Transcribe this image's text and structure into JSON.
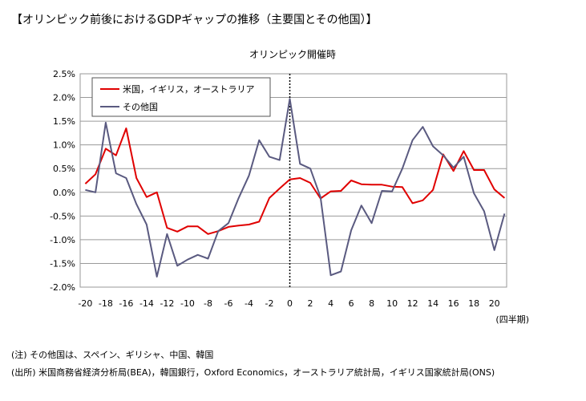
{
  "title": "【オリンピック前後におけるGDPギャップの推移（主要国とその他国）】",
  "notes": [
    "(注) その他国は、スペイン、ギリシャ、中国、韓国",
    "(出所) 米国商務省経済分析局(BEA)，韓国銀行，Oxford Economics，オーストラリア統計局，イギリス国家統計局(ONS)"
  ],
  "chart_data": {
    "type": "line",
    "subtitle": "オリンピック開催時",
    "xlabel": "(四半期)",
    "ylabel": "",
    "x": [
      -20,
      -19,
      -18,
      -17,
      -16,
      -15,
      -14,
      -13,
      -12,
      -11,
      -10,
      -9,
      -8,
      -7,
      -6,
      -5,
      -4,
      -3,
      -2,
      -1,
      0,
      1,
      2,
      3,
      4,
      5,
      6,
      7,
      8,
      9,
      10,
      11,
      12,
      13,
      14,
      15,
      16,
      17,
      18,
      19,
      20,
      21
    ],
    "xticks": [
      -20,
      -18,
      -16,
      -14,
      -12,
      -10,
      -8,
      -6,
      -4,
      -2,
      0,
      2,
      4,
      6,
      8,
      10,
      12,
      14,
      16,
      18,
      20
    ],
    "xlim": [
      -20.5,
      21.2
    ],
    "ylim": [
      -2.0,
      2.5
    ],
    "yticks": [
      {
        "value": 2.5,
        "label": "2.5%"
      },
      {
        "value": 2.0,
        "label": "2.0%"
      },
      {
        "value": 1.5,
        "label": "1.5%"
      },
      {
        "value": 1.0,
        "label": "1.0%"
      },
      {
        "value": 0.5,
        "label": "0.5%"
      },
      {
        "value": 0.0,
        "label": "0.0%"
      },
      {
        "value": -0.5,
        "label": "-0.5%"
      },
      {
        "value": -1.0,
        "label": "-1.0%"
      },
      {
        "value": -1.5,
        "label": "-1.5%"
      },
      {
        "value": -2.0,
        "label": "-2.0%"
      }
    ],
    "grid": true,
    "event_x": 0,
    "legend_position": "top-left",
    "series": [
      {
        "name": "米国，イギリス，オーストラリア",
        "color": "#e00000",
        "values": [
          0.18,
          0.38,
          0.92,
          0.78,
          1.35,
          0.3,
          -0.1,
          0.0,
          -0.75,
          -0.83,
          -0.72,
          -0.72,
          -0.88,
          -0.82,
          -0.73,
          -0.7,
          -0.68,
          -0.62,
          -0.12,
          0.08,
          0.27,
          0.3,
          0.2,
          -0.13,
          0.02,
          0.03,
          0.25,
          0.17,
          0.16,
          0.16,
          0.12,
          0.11,
          -0.23,
          -0.17,
          0.05,
          0.8,
          0.45,
          0.87,
          0.47,
          0.47,
          0.06,
          -0.12
        ]
      },
      {
        "name": "その他国",
        "color": "#5a5a80",
        "values": [
          0.05,
          0.0,
          1.47,
          0.4,
          0.3,
          -0.25,
          -0.68,
          -1.78,
          -0.88,
          -1.55,
          -1.42,
          -1.32,
          -1.4,
          -0.82,
          -0.65,
          -0.12,
          0.35,
          1.1,
          0.75,
          0.68,
          1.97,
          0.6,
          0.5,
          -0.1,
          -1.75,
          -1.67,
          -0.8,
          -0.28,
          -0.65,
          0.03,
          0.02,
          0.5,
          1.1,
          1.38,
          0.97,
          0.78,
          0.52,
          0.75,
          -0.02,
          -0.4,
          -1.22,
          -0.45
        ]
      }
    ]
  }
}
